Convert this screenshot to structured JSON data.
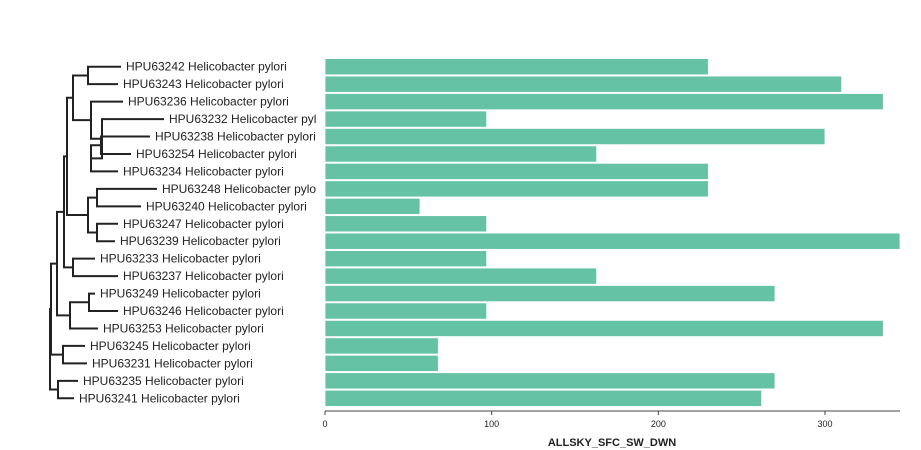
{
  "chart_data": {
    "type": "bar",
    "orientation": "horizontal",
    "title": "",
    "xlabel": "ALLSKY_SFC_SW_DWN",
    "ylabel": "",
    "xlim": [
      0,
      345
    ],
    "x_ticks": [
      0,
      100,
      200,
      300
    ],
    "grid": false,
    "bar_color": "#66c2a5",
    "categories": [
      "HPU63242 Helicobacter pylori",
      "HPU63243 Helicobacter pylori",
      "HPU63236 Helicobacter pylori",
      "HPU63232 Helicobacter pyl",
      "HPU63238 Helicobacter pylori",
      "HPU63254 Helicobacter pylori",
      "HPU63234 Helicobacter pylori",
      "HPU63248 Helicobacter pylo",
      "HPU63240 Helicobacter pylori",
      "HPU63247 Helicobacter pylori",
      "HPU63239 Helicobacter pylori",
      "HPU63233 Helicobacter pylori",
      "HPU63237 Helicobacter pylori",
      "HPU63249 Helicobacter pylori",
      "HPU63246 Helicobacter pylori",
      "HPU63253 Helicobacter pylori",
      "HPU63245 Helicobacter pylori",
      "HPU63231 Helicobacter pylori",
      "HPU63235 Helicobacter pylori",
      "HPU63241 Helicobacter pylori"
    ],
    "values": [
      230,
      310,
      335,
      97,
      300,
      163,
      230,
      230,
      57,
      97,
      345,
      97,
      163,
      270,
      97,
      335,
      68,
      68,
      270,
      262
    ],
    "dendrogram": true
  }
}
